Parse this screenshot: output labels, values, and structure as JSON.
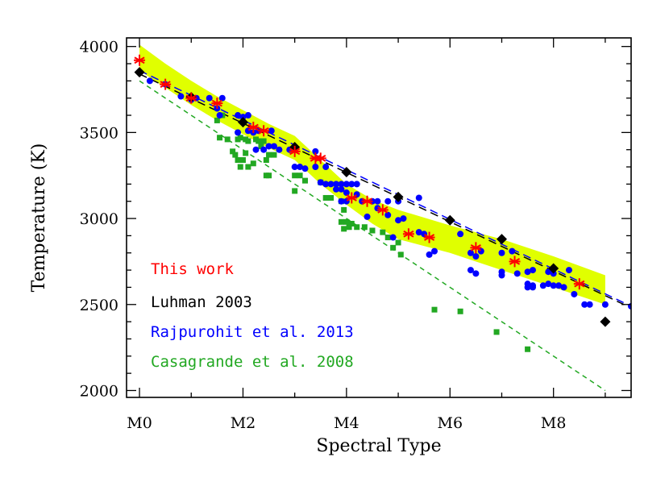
{
  "chart_data": {
    "type": "scatter",
    "xlabel": "Spectral Type",
    "ylabel": "Temperature (K)",
    "xlim": [
      -0.25,
      9.5
    ],
    "ylim": [
      1960,
      4050
    ],
    "x_ticks": [
      {
        "value": 0,
        "label": "M0"
      },
      {
        "value": 2,
        "label": "M2"
      },
      {
        "value": 4,
        "label": "M4"
      },
      {
        "value": 6,
        "label": "M6"
      },
      {
        "value": 8,
        "label": "M8"
      }
    ],
    "y_ticks": [
      {
        "value": 2000,
        "label": "2000"
      },
      {
        "value": 2500,
        "label": "2500"
      },
      {
        "value": 3000,
        "label": "3000"
      },
      {
        "value": 3500,
        "label": "3500"
      },
      {
        "value": 4000,
        "label": "4000"
      }
    ],
    "grid": false,
    "legend_position": "bottom-left",
    "colors": {
      "this_work": "#ff0000",
      "luhman": "#000000",
      "rajpurohit": "#0000ff",
      "casagrande": "#22a822",
      "band": "#e0ff00"
    },
    "band": {
      "x": [
        0,
        0.5,
        1,
        1.5,
        2,
        2.5,
        3,
        3.5,
        4,
        4.5,
        5,
        6,
        7,
        8,
        9
      ],
      "upper": [
        4010,
        3900,
        3800,
        3710,
        3630,
        3550,
        3480,
        3340,
        3200,
        3110,
        3050,
        2960,
        2880,
        2780,
        2670
      ],
      "lower": [
        3860,
        3760,
        3660,
        3570,
        3490,
        3410,
        3340,
        3200,
        3080,
        2970,
        2880,
        2800,
        2700,
        2600,
        2500
      ]
    },
    "series": [
      {
        "name": "This work",
        "marker": "asterisk",
        "color": "#ff0000",
        "points": [
          [
            0,
            3920
          ],
          [
            0.5,
            3780
          ],
          [
            1.0,
            3700
          ],
          [
            1.5,
            3670
          ],
          [
            2.2,
            3530
          ],
          [
            2.4,
            3510
          ],
          [
            3.0,
            3390
          ],
          [
            3.4,
            3350
          ],
          [
            3.5,
            3350
          ],
          [
            4.1,
            3120
          ],
          [
            4.4,
            3100
          ],
          [
            4.7,
            3050
          ],
          [
            5.2,
            2910
          ],
          [
            5.6,
            2890
          ],
          [
            6.5,
            2830
          ],
          [
            7.25,
            2750
          ],
          [
            8.5,
            2620
          ]
        ]
      },
      {
        "name": "Luhman 2003",
        "marker": "diamond",
        "color": "#000000",
        "points": [
          [
            0,
            3850
          ],
          [
            1,
            3705
          ],
          [
            2,
            3560
          ],
          [
            3,
            3415
          ],
          [
            4,
            3270
          ],
          [
            5,
            3125
          ],
          [
            6,
            2990
          ],
          [
            7,
            2880
          ],
          [
            8,
            2710
          ],
          [
            9,
            2400
          ]
        ]
      },
      {
        "name": "Rajpurohit et al. 2013",
        "marker": "circle",
        "color": "#0000ff",
        "points": [
          [
            0.2,
            3800
          ],
          [
            0.5,
            3780
          ],
          [
            0.8,
            3710
          ],
          [
            1.0,
            3690
          ],
          [
            1.1,
            3700
          ],
          [
            1.35,
            3700
          ],
          [
            1.5,
            3640
          ],
          [
            1.55,
            3600
          ],
          [
            1.6,
            3700
          ],
          [
            1.9,
            3600
          ],
          [
            2.0,
            3590
          ],
          [
            2.1,
            3600
          ],
          [
            1.9,
            3500
          ],
          [
            2.1,
            3510
          ],
          [
            2.2,
            3500
          ],
          [
            2.3,
            3510
          ],
          [
            2.55,
            3510
          ],
          [
            2.25,
            3400
          ],
          [
            2.4,
            3400
          ],
          [
            2.5,
            3420
          ],
          [
            2.6,
            3420
          ],
          [
            2.7,
            3400
          ],
          [
            2.9,
            3400
          ],
          [
            3.0,
            3300
          ],
          [
            3.1,
            3300
          ],
          [
            3.2,
            3290
          ],
          [
            3.4,
            3390
          ],
          [
            3.4,
            3300
          ],
          [
            3.6,
            3300
          ],
          [
            3.5,
            3210
          ],
          [
            3.6,
            3200
          ],
          [
            3.7,
            3200
          ],
          [
            3.8,
            3200
          ],
          [
            3.9,
            3200
          ],
          [
            4.0,
            3200
          ],
          [
            4.1,
            3200
          ],
          [
            4.2,
            3200
          ],
          [
            3.8,
            3170
          ],
          [
            3.9,
            3170
          ],
          [
            4.0,
            3150
          ],
          [
            4.2,
            3140
          ],
          [
            3.9,
            3100
          ],
          [
            4.0,
            3100
          ],
          [
            4.3,
            3100
          ],
          [
            4.5,
            3100
          ],
          [
            4.6,
            3100
          ],
          [
            4.8,
            3100
          ],
          [
            5.0,
            3100
          ],
          [
            5.4,
            3120
          ],
          [
            4.6,
            3060
          ],
          [
            4.8,
            3020
          ],
          [
            4.4,
            3010
          ],
          [
            5.0,
            2990
          ],
          [
            5.1,
            3000
          ],
          [
            5.4,
            2920
          ],
          [
            5.5,
            2910
          ],
          [
            4.9,
            2890
          ],
          [
            5.7,
            2810
          ],
          [
            5.6,
            2790
          ],
          [
            6.2,
            2910
          ],
          [
            6.4,
            2800
          ],
          [
            6.5,
            2780
          ],
          [
            6.6,
            2810
          ],
          [
            7.0,
            2800
          ],
          [
            7.2,
            2810
          ],
          [
            6.4,
            2700
          ],
          [
            6.5,
            2680
          ],
          [
            7.0,
            2690
          ],
          [
            7.0,
            2670
          ],
          [
            7.3,
            2680
          ],
          [
            7.5,
            2690
          ],
          [
            7.6,
            2700
          ],
          [
            7.9,
            2690
          ],
          [
            8.0,
            2680
          ],
          [
            8.3,
            2700
          ],
          [
            7.5,
            2620
          ],
          [
            7.6,
            2610
          ],
          [
            7.8,
            2610
          ],
          [
            7.5,
            2600
          ],
          [
            7.6,
            2600
          ],
          [
            7.9,
            2620
          ],
          [
            8.0,
            2610
          ],
          [
            8.1,
            2610
          ],
          [
            8.2,
            2600
          ],
          [
            8.4,
            2560
          ],
          [
            8.6,
            2500
          ],
          [
            8.7,
            2500
          ],
          [
            9.0,
            2500
          ],
          [
            9.5,
            2490
          ]
        ]
      },
      {
        "name": "Casagrande et al. 2008",
        "marker": "square",
        "color": "#22a822",
        "points": [
          [
            1.5,
            3570
          ],
          [
            1.6,
            3600
          ],
          [
            1.55,
            3470
          ],
          [
            1.7,
            3460
          ],
          [
            1.9,
            3460
          ],
          [
            1.95,
            3470
          ],
          [
            2.05,
            3460
          ],
          [
            2.1,
            3450
          ],
          [
            2.25,
            3460
          ],
          [
            2.3,
            3450
          ],
          [
            2.4,
            3450
          ],
          [
            2.35,
            3420
          ],
          [
            1.8,
            3390
          ],
          [
            1.85,
            3370
          ],
          [
            2.05,
            3380
          ],
          [
            2.5,
            3370
          ],
          [
            2.6,
            3370
          ],
          [
            1.9,
            3340
          ],
          [
            2.0,
            3340
          ],
          [
            2.2,
            3320
          ],
          [
            2.45,
            3340
          ],
          [
            1.95,
            3300
          ],
          [
            2.1,
            3300
          ],
          [
            2.45,
            3250
          ],
          [
            2.5,
            3250
          ],
          [
            3.0,
            3250
          ],
          [
            3.1,
            3250
          ],
          [
            3.2,
            3220
          ],
          [
            3.5,
            3210
          ],
          [
            3.0,
            3160
          ],
          [
            3.6,
            3120
          ],
          [
            3.7,
            3120
          ],
          [
            3.9,
            3100
          ],
          [
            3.95,
            3050
          ],
          [
            3.9,
            2980
          ],
          [
            4.0,
            2980
          ],
          [
            4.1,
            2970
          ],
          [
            3.95,
            2940
          ],
          [
            4.05,
            2950
          ],
          [
            4.2,
            2950
          ],
          [
            4.35,
            2950
          ],
          [
            4.5,
            2930
          ],
          [
            4.7,
            2920
          ],
          [
            4.8,
            2890
          ],
          [
            5.0,
            2860
          ],
          [
            5.05,
            2790
          ],
          [
            4.9,
            2830
          ],
          [
            5.7,
            2470
          ],
          [
            6.2,
            2460
          ],
          [
            6.9,
            2340
          ],
          [
            7.5,
            2240
          ]
        ]
      }
    ],
    "fits": [
      {
        "color": "#000000",
        "dash": "long",
        "x": [
          0,
          9.5
        ],
        "y": [
          3840,
          2480
        ]
      },
      {
        "color": "#0000ff",
        "dash": "long",
        "x": [
          0,
          9.5
        ],
        "y": [
          3860,
          2490
        ]
      },
      {
        "color": "#22a822",
        "dash": "short",
        "x": [
          0,
          9.0
        ],
        "y": [
          3800,
          2000
        ]
      }
    ],
    "legend": [
      {
        "label": "This work",
        "color": "#ff0000"
      },
      {
        "label": "Luhman 2003",
        "color": "#000000"
      },
      {
        "label": "Rajpurohit et al. 2013",
        "color": "#0000ff"
      },
      {
        "label": "Casagrande et al. 2008",
        "color": "#22a822"
      }
    ]
  }
}
